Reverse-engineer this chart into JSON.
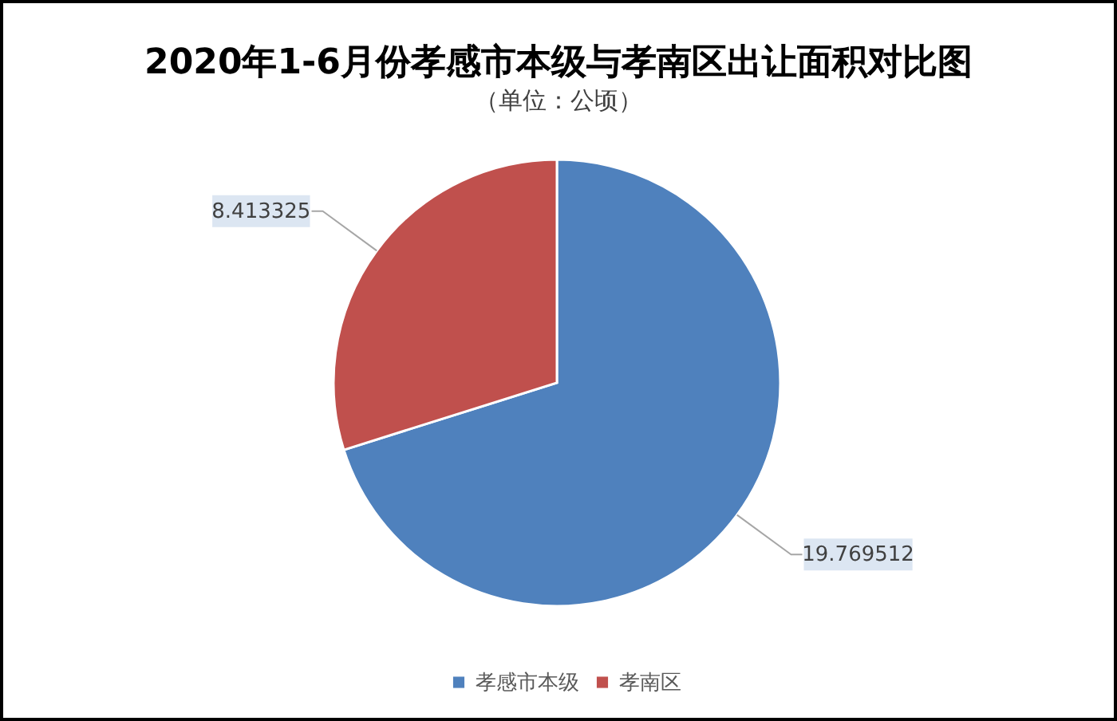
{
  "chart_data": {
    "type": "pie",
    "title": "2020年1-6月份孝感市本级与孝南区出让面积对比图",
    "subtitle": "（单位：公顷）",
    "categories": [
      "孝感市本级",
      "孝南区"
    ],
    "values": [
      19.769512,
      8.413325
    ],
    "colors": [
      "#4f81bd",
      "#c0504d"
    ],
    "data_labels": true,
    "legend": "bottom"
  }
}
